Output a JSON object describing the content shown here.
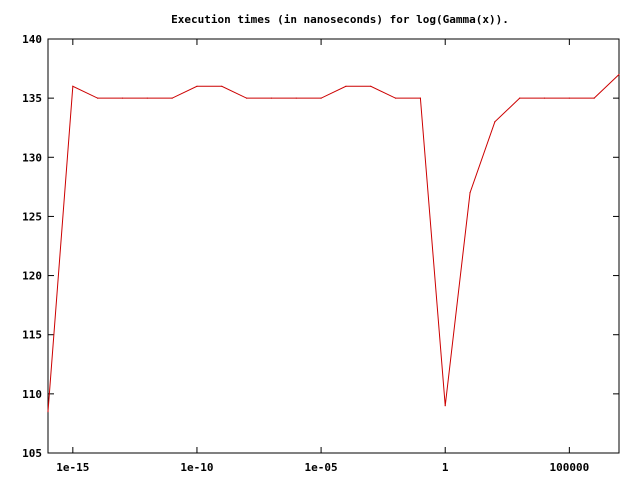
{
  "chart_data": {
    "type": "line",
    "title": "Execution times (in nanoseconds) for log(Gamma(x)).",
    "xlabel": "",
    "ylabel": "",
    "xscale": "log10",
    "xlim": [
      1e-16,
      10000000.0
    ],
    "ylim": [
      105,
      140
    ],
    "grid": false,
    "x_ticks": [
      {
        "value": 1e-15,
        "label": "1e-15"
      },
      {
        "value": 1e-10,
        "label": "1e-10"
      },
      {
        "value": 1e-05,
        "label": "1e-05"
      },
      {
        "value": 1,
        "label": "1"
      },
      {
        "value": 100000,
        "label": "100000"
      }
    ],
    "y_ticks": [
      {
        "value": 105,
        "label": "105"
      },
      {
        "value": 110,
        "label": "110"
      },
      {
        "value": 115,
        "label": "115"
      },
      {
        "value": 120,
        "label": "120"
      },
      {
        "value": 125,
        "label": "125"
      },
      {
        "value": 130,
        "label": "130"
      },
      {
        "value": 135,
        "label": "135"
      },
      {
        "value": 140,
        "label": "140"
      }
    ],
    "series": [
      {
        "color": "#cc0000",
        "x": [
          1e-16,
          1e-15,
          1e-14,
          1e-13,
          1e-12,
          1e-11,
          1e-10,
          1e-09,
          1e-08,
          1e-07,
          1e-06,
          1e-05,
          0.0001,
          0.001,
          0.01,
          0.1,
          1,
          10,
          100,
          1000,
          10000,
          100000,
          1000000,
          10000000
        ],
        "y": [
          108.5,
          136,
          135,
          135,
          135,
          135,
          136,
          136,
          135,
          135,
          135,
          135,
          136,
          136,
          135,
          135,
          109,
          127,
          133,
          135,
          135,
          135,
          135,
          137
        ]
      }
    ]
  }
}
